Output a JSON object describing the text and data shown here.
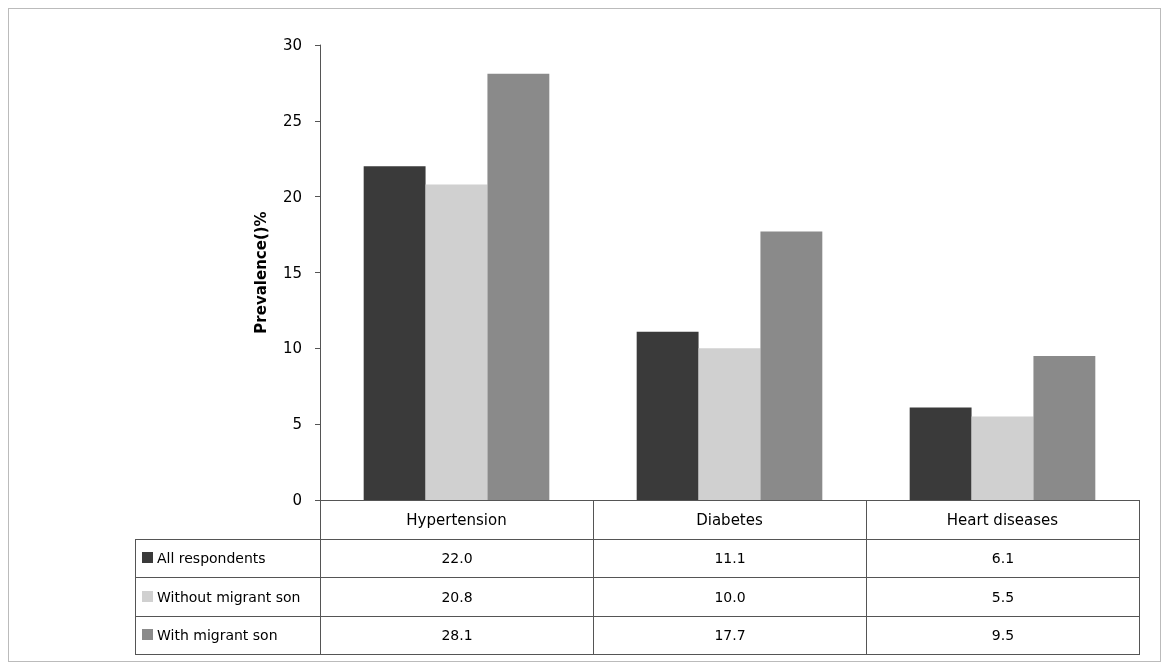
{
  "chart_data": {
    "type": "bar",
    "ylabel": "Prevalence()%",
    "categories": [
      "Hypertension",
      "Diabetes",
      "Heart diseases"
    ],
    "series": [
      {
        "name": "All respondents",
        "color": "#3a3a3a",
        "values": [
          22.0,
          11.1,
          6.1
        ],
        "value_labels": [
          "22.0",
          "11.1",
          "6.1"
        ]
      },
      {
        "name": "Without migrant son",
        "color": "#d0d0d0",
        "values": [
          20.8,
          10.0,
          5.5
        ],
        "value_labels": [
          "20.8",
          "10.0",
          "5.5"
        ]
      },
      {
        "name": "With migrant son",
        "color": "#8a8a8a",
        "values": [
          28.1,
          17.7,
          9.5
        ],
        "value_labels": [
          "28.1",
          "17.7",
          "9.5"
        ]
      }
    ],
    "ylim": [
      0,
      30
    ],
    "yticks": [
      0,
      5,
      10,
      15,
      20,
      25,
      30
    ],
    "grid": false,
    "legend": "bottom left"
  }
}
